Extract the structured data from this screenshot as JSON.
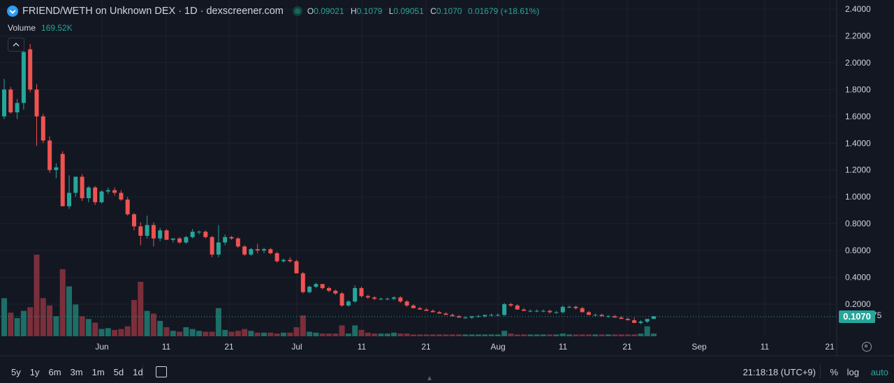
{
  "header": {
    "title": "FRIEND/WETH on Unknown DEX · 1D · dexscreener.com",
    "ohlc": {
      "o_label": "O",
      "o": "0.09021",
      "h_label": "H",
      "h": "0.1079",
      "l_label": "L",
      "l": "0.09051",
      "c_label": "C",
      "c": "0.1070",
      "change": "0.01679 (+18.61%)"
    },
    "volume_label": "Volume",
    "volume_value": "169.52K",
    "collapse_icon": "chevron-up-icon"
  },
  "price_axis": {
    "labels": [
      "2.4000",
      "2.2000",
      "2.0000",
      "1.8000",
      "1.6000",
      "1.4000",
      "1.2000",
      "1.0000",
      "0.8000",
      "0.6000",
      "0.4000",
      "0.2000",
      "0.0₁₅2775"
    ],
    "values": [
      2.4,
      2.2,
      2.0,
      1.8,
      1.6,
      1.4,
      1.2,
      1.0,
      0.8,
      0.6,
      0.4,
      0.2,
      0.0
    ],
    "current_price": "0.1070"
  },
  "time_axis": {
    "labels": [
      "Jun",
      "11",
      "21",
      "Jul",
      "11",
      "21",
      "Aug",
      "11",
      "21",
      "Sep",
      "11",
      "21"
    ]
  },
  "chart_data": {
    "type": "candlestick",
    "x_start": "2023-05-21",
    "ylim": [
      0,
      2.4
    ],
    "candles": [
      [
        1.6,
        1.88,
        1.58,
        1.8
      ],
      [
        1.8,
        1.82,
        1.62,
        1.63
      ],
      [
        1.63,
        1.73,
        1.58,
        1.7
      ],
      [
        1.7,
        2.1,
        1.65,
        2.08
      ],
      [
        2.1,
        2.14,
        1.78,
        1.8
      ],
      [
        1.8,
        1.84,
        1.38,
        1.6
      ],
      [
        1.6,
        1.62,
        1.4,
        1.42
      ],
      [
        1.42,
        1.45,
        1.18,
        1.2
      ],
      [
        1.2,
        1.25,
        1.14,
        1.22
      ],
      [
        1.32,
        1.34,
        0.93,
        0.93
      ],
      [
        0.93,
        1.16,
        0.91,
        1.03
      ],
      [
        1.03,
        1.15,
        1.0,
        1.15
      ],
      [
        1.15,
        1.17,
        0.97,
        0.99
      ],
      [
        0.99,
        1.08,
        0.96,
        1.07
      ],
      [
        1.07,
        1.08,
        0.94,
        0.96
      ],
      [
        0.96,
        1.05,
        0.95,
        1.04
      ],
      [
        1.04,
        1.07,
        1.02,
        1.05
      ],
      [
        1.05,
        1.07,
        1.01,
        1.03
      ],
      [
        1.03,
        1.05,
        0.97,
        0.98
      ],
      [
        0.98,
        1.0,
        0.86,
        0.87
      ],
      [
        0.87,
        0.88,
        0.75,
        0.78
      ],
      [
        0.78,
        0.81,
        0.64,
        0.71
      ],
      [
        0.71,
        0.86,
        0.69,
        0.79
      ],
      [
        0.79,
        0.81,
        0.63,
        0.69
      ],
      [
        0.69,
        0.77,
        0.67,
        0.75
      ],
      [
        0.75,
        0.76,
        0.68,
        0.68
      ],
      [
        0.68,
        0.69,
        0.66,
        0.69
      ],
      [
        0.69,
        0.7,
        0.65,
        0.66
      ],
      [
        0.66,
        0.71,
        0.65,
        0.7
      ],
      [
        0.7,
        0.76,
        0.69,
        0.74
      ],
      [
        0.74,
        0.75,
        0.72,
        0.74
      ],
      [
        0.74,
        0.75,
        0.69,
        0.7
      ],
      [
        0.7,
        0.71,
        0.55,
        0.57
      ],
      [
        0.57,
        0.79,
        0.55,
        0.66
      ],
      [
        0.66,
        0.72,
        0.64,
        0.7
      ],
      [
        0.7,
        0.71,
        0.68,
        0.69
      ],
      [
        0.69,
        0.7,
        0.62,
        0.63
      ],
      [
        0.63,
        0.64,
        0.56,
        0.57
      ],
      [
        0.57,
        0.62,
        0.56,
        0.61
      ],
      [
        0.61,
        0.65,
        0.58,
        0.6
      ],
      [
        0.6,
        0.62,
        0.58,
        0.61
      ],
      [
        0.61,
        0.62,
        0.57,
        0.58
      ],
      [
        0.58,
        0.59,
        0.51,
        0.52
      ],
      [
        0.52,
        0.54,
        0.51,
        0.53
      ],
      [
        0.53,
        0.55,
        0.51,
        0.52
      ],
      [
        0.52,
        0.53,
        0.43,
        0.43
      ],
      [
        0.43,
        0.44,
        0.28,
        0.29
      ],
      [
        0.29,
        0.34,
        0.28,
        0.33
      ],
      [
        0.33,
        0.36,
        0.32,
        0.35
      ],
      [
        0.35,
        0.35,
        0.31,
        0.32
      ],
      [
        0.32,
        0.33,
        0.29,
        0.3
      ],
      [
        0.3,
        0.31,
        0.27,
        0.28
      ],
      [
        0.28,
        0.29,
        0.18,
        0.19
      ],
      [
        0.19,
        0.23,
        0.18,
        0.22
      ],
      [
        0.22,
        0.34,
        0.21,
        0.32
      ],
      [
        0.32,
        0.33,
        0.25,
        0.26
      ],
      [
        0.26,
        0.27,
        0.24,
        0.25
      ],
      [
        0.25,
        0.26,
        0.23,
        0.24
      ],
      [
        0.24,
        0.25,
        0.23,
        0.24
      ],
      [
        0.24,
        0.25,
        0.23,
        0.24
      ],
      [
        0.24,
        0.26,
        0.23,
        0.25
      ],
      [
        0.25,
        0.26,
        0.21,
        0.22
      ],
      [
        0.22,
        0.23,
        0.18,
        0.19
      ],
      [
        0.19,
        0.2,
        0.17,
        0.17
      ],
      [
        0.17,
        0.18,
        0.16,
        0.16
      ],
      [
        0.16,
        0.17,
        0.15,
        0.15
      ],
      [
        0.15,
        0.16,
        0.14,
        0.14
      ],
      [
        0.14,
        0.15,
        0.13,
        0.13
      ],
      [
        0.13,
        0.14,
        0.12,
        0.12
      ],
      [
        0.12,
        0.13,
        0.11,
        0.11
      ],
      [
        0.11,
        0.12,
        0.1,
        0.1
      ],
      [
        0.1,
        0.11,
        0.09,
        0.1
      ],
      [
        0.1,
        0.11,
        0.09,
        0.11
      ],
      [
        0.11,
        0.12,
        0.1,
        0.11
      ],
      [
        0.11,
        0.12,
        0.1,
        0.12
      ],
      [
        0.12,
        0.13,
        0.11,
        0.12
      ],
      [
        0.12,
        0.13,
        0.11,
        0.12
      ],
      [
        0.12,
        0.21,
        0.11,
        0.2
      ],
      [
        0.2,
        0.21,
        0.18,
        0.19
      ],
      [
        0.19,
        0.2,
        0.16,
        0.16
      ],
      [
        0.16,
        0.17,
        0.15,
        0.15
      ],
      [
        0.15,
        0.16,
        0.14,
        0.15
      ],
      [
        0.15,
        0.16,
        0.14,
        0.15
      ],
      [
        0.15,
        0.16,
        0.14,
        0.15
      ],
      [
        0.15,
        0.16,
        0.13,
        0.14
      ],
      [
        0.14,
        0.15,
        0.13,
        0.14
      ],
      [
        0.14,
        0.19,
        0.13,
        0.18
      ],
      [
        0.18,
        0.19,
        0.17,
        0.18
      ],
      [
        0.18,
        0.19,
        0.16,
        0.17
      ],
      [
        0.17,
        0.18,
        0.14,
        0.14
      ],
      [
        0.14,
        0.15,
        0.12,
        0.12
      ],
      [
        0.12,
        0.13,
        0.11,
        0.12
      ],
      [
        0.12,
        0.13,
        0.11,
        0.11
      ],
      [
        0.11,
        0.12,
        0.1,
        0.11
      ],
      [
        0.11,
        0.12,
        0.1,
        0.1
      ],
      [
        0.1,
        0.11,
        0.09,
        0.09
      ],
      [
        0.09,
        0.1,
        0.08,
        0.08
      ],
      [
        0.08,
        0.1,
        0.06,
        0.06
      ],
      [
        0.06,
        0.08,
        0.05,
        0.07
      ],
      [
        0.07,
        0.09,
        0.06,
        0.09
      ],
      [
        0.09,
        0.11,
        0.09,
        0.11
      ]
    ],
    "volumes": [
      0.42,
      0.26,
      0.2,
      0.28,
      0.32,
      0.9,
      0.42,
      0.34,
      0.22,
      0.74,
      0.55,
      0.35,
      0.22,
      0.19,
      0.15,
      0.08,
      0.09,
      0.07,
      0.08,
      0.11,
      0.4,
      0.6,
      0.28,
      0.25,
      0.17,
      0.1,
      0.06,
      0.05,
      0.1,
      0.08,
      0.06,
      0.05,
      0.05,
      0.31,
      0.07,
      0.05,
      0.06,
      0.08,
      0.06,
      0.04,
      0.04,
      0.04,
      0.03,
      0.04,
      0.04,
      0.1,
      0.23,
      0.05,
      0.04,
      0.03,
      0.03,
      0.03,
      0.12,
      0.03,
      0.12,
      0.07,
      0.04,
      0.03,
      0.03,
      0.03,
      0.04,
      0.03,
      0.03,
      0.02,
      0.02,
      0.02,
      0.02,
      0.02,
      0.02,
      0.02,
      0.02,
      0.02,
      0.02,
      0.02,
      0.02,
      0.02,
      0.02,
      0.06,
      0.03,
      0.02,
      0.02,
      0.02,
      0.02,
      0.02,
      0.02,
      0.02,
      0.03,
      0.02,
      0.02,
      0.02,
      0.02,
      0.02,
      0.02,
      0.02,
      0.02,
      0.02,
      0.02,
      0.02,
      0.03,
      0.11,
      0.03
    ]
  },
  "colors": {
    "up": "#26a69a",
    "down": "#ef5350",
    "grid": "#1e222d",
    "bg": "#131722",
    "vol_up": "#1d6e66",
    "vol_down": "#7a2f3b"
  },
  "toolbar": {
    "timeframes": [
      "5y",
      "1y",
      "6m",
      "3m",
      "1m",
      "5d",
      "1d"
    ],
    "clock": "21:18:18 (UTC+9)",
    "percent": "%",
    "log": "log",
    "auto": "auto"
  }
}
